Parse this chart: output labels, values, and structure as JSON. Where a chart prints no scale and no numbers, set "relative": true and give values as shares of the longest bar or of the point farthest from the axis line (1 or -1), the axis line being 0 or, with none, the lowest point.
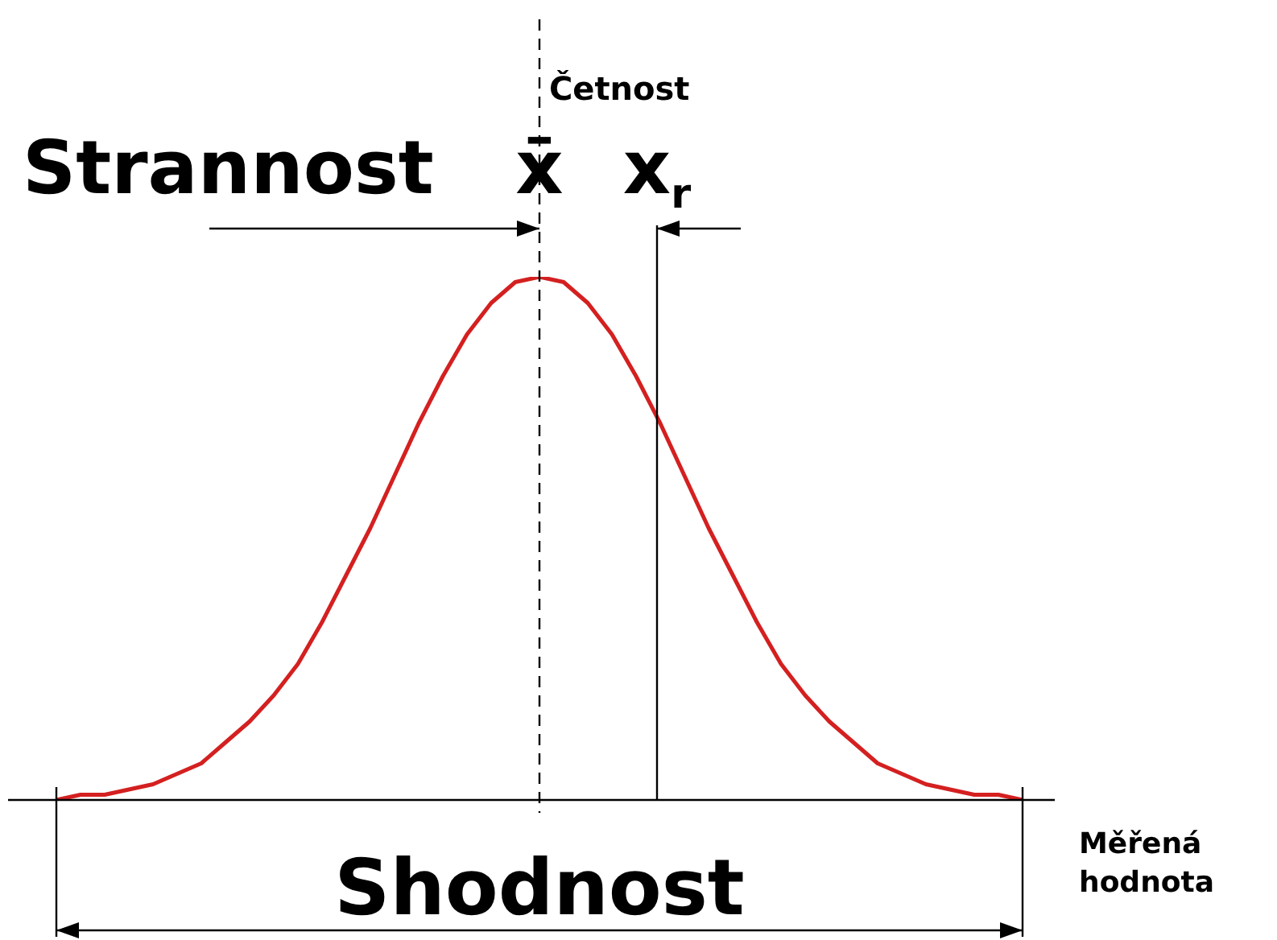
{
  "chart_data": {
    "type": "line",
    "relative": true,
    "tick_labels": false,
    "legend": false,
    "marker": "none",
    "line_style": "solid",
    "xlabel": "Měřená hodnota",
    "categories": [
      null,
      null,
      null,
      null,
      null,
      null,
      null,
      null,
      null,
      null,
      null,
      null,
      null,
      null,
      null,
      null,
      null,
      null,
      null,
      null,
      null,
      null,
      null,
      null,
      null,
      null,
      null,
      null,
      null,
      null,
      null,
      null,
      null,
      null,
      null,
      null,
      null,
      null,
      null,
      null,
      null
    ],
    "series": [
      {
        "color": "#d42020",
        "values": [
          0.0,
          0.01,
          0.01,
          0.02,
          0.03,
          0.05,
          0.07,
          0.11,
          0.15,
          0.2,
          0.26,
          0.34,
          0.43,
          0.52,
          0.62,
          0.72,
          0.81,
          0.89,
          0.95,
          0.99,
          1,
          0.99,
          0.95,
          0.89,
          0.81,
          0.72,
          0.62,
          0.52,
          0.43,
          0.34,
          0.26,
          0.2,
          0.15,
          0.11,
          0.07,
          0.05,
          0.03,
          0.02,
          0.01,
          0.01,
          0.0
        ]
      }
    ],
    "annotations": [
      "Četnost",
      "Strannost",
      "x̄",
      "x$_{r}$",
      "Shodnost"
    ]
  }
}
